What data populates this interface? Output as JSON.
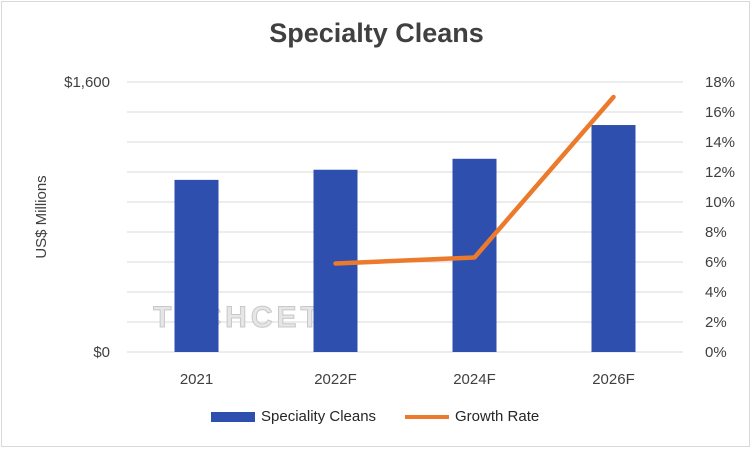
{
  "chart_data": {
    "type": "bar",
    "title": "Specialty Cleans",
    "ylabel": "US$ Millions",
    "categories": [
      "2021",
      "2022F",
      "2024F",
      "2026F"
    ],
    "ylim": [
      0,
      1600
    ],
    "y_tick_labels": [
      "$1,600",
      "$0"
    ],
    "y2lim": [
      0,
      18
    ],
    "y2_tick_labels": [
      "18%",
      "16%",
      "14%",
      "12%",
      "10%",
      "8%",
      "6%",
      "4%",
      "2%",
      "0%"
    ],
    "grid": true,
    "legend_position": "bottom",
    "series": [
      {
        "name": "Speciality Cleans",
        "type": "bar",
        "axis": "left",
        "color": "#2e4fae",
        "values": [
          1020,
          1080,
          1145,
          1345
        ]
      },
      {
        "name": "Growth Rate",
        "type": "line",
        "axis": "right",
        "color": "#ec7a2c",
        "values": [
          null,
          5.9,
          6.3,
          17.0
        ]
      }
    ],
    "watermark": "TECHCET"
  }
}
